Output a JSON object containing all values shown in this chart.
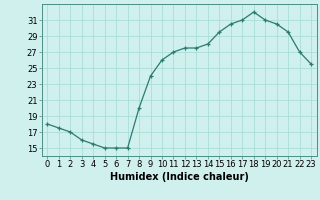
{
  "x": [
    0,
    1,
    2,
    3,
    4,
    5,
    6,
    7,
    8,
    9,
    10,
    11,
    12,
    13,
    14,
    15,
    16,
    17,
    18,
    19,
    20,
    21,
    22,
    23
  ],
  "y": [
    18.0,
    17.5,
    17.0,
    16.0,
    15.5,
    15.0,
    15.0,
    15.0,
    20.0,
    24.0,
    26.0,
    27.0,
    27.5,
    27.5,
    28.0,
    29.5,
    30.5,
    31.0,
    32.0,
    31.0,
    30.5,
    29.5,
    27.0,
    25.5
  ],
  "xlabel": "Humidex (Indice chaleur)",
  "xticks": [
    0,
    1,
    2,
    3,
    4,
    5,
    6,
    7,
    8,
    9,
    10,
    11,
    12,
    13,
    14,
    15,
    16,
    17,
    18,
    19,
    20,
    21,
    22,
    23
  ],
  "yticks": [
    15,
    17,
    19,
    21,
    23,
    25,
    27,
    29,
    31
  ],
  "ylim": [
    14.0,
    33.0
  ],
  "xlim": [
    -0.5,
    23.5
  ],
  "line_color": "#2d7a6e",
  "marker": "+",
  "bg_color": "#cff0ec",
  "grid_color": "#aaddda",
  "font_size_axis": 6,
  "font_size_xlabel": 7
}
